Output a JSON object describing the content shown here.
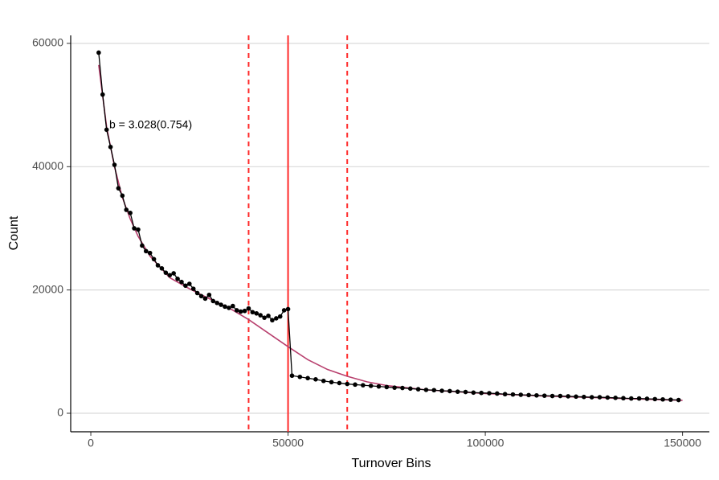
{
  "chart_data": {
    "type": "line",
    "x_label": "Turnover Bins",
    "y_label": "Count",
    "annotation": "b = 3.028(0.754)",
    "xlim": [
      -5100,
      156800
    ],
    "ylim": [
      -3000,
      61300
    ],
    "xticks": [
      0,
      50000,
      100000,
      150000
    ],
    "yticks": [
      0,
      20000,
      40000,
      60000
    ],
    "grid": true,
    "series": [
      {
        "name": "observed",
        "color": "#000000",
        "markers": true,
        "x": [
          2000,
          3000,
          4000,
          5000,
          6000,
          7000,
          8000,
          9000,
          10000,
          11000,
          12000,
          13000,
          14000,
          15000,
          16000,
          17000,
          18000,
          19000,
          20000,
          21000,
          22000,
          23000,
          24000,
          25000,
          26000,
          27000,
          28000,
          29000,
          30000,
          31000,
          32000,
          33000,
          34000,
          35000,
          36000,
          37000,
          38000,
          39000,
          40000,
          41000,
          42000,
          43000,
          44000,
          45000,
          46000,
          47000,
          48000,
          49000,
          50000,
          51000,
          53000,
          55000,
          57000,
          59000,
          61000,
          63000,
          65000,
          67000,
          69000,
          71000,
          73000,
          75000,
          77000,
          79000,
          81000,
          83000,
          85000,
          87000,
          89000,
          91000,
          93000,
          95000,
          97000,
          99000,
          101000,
          103000,
          105000,
          107000,
          109000,
          111000,
          113000,
          115000,
          117000,
          119000,
          121000,
          123000,
          125000,
          127000,
          129000,
          131000,
          133000,
          135000,
          137000,
          139000,
          141000,
          143000,
          145000,
          147000,
          149000
        ],
        "values": [
          58500,
          51700,
          46000,
          43200,
          40300,
          36500,
          35300,
          33000,
          32500,
          30000,
          29800,
          27200,
          26300,
          26000,
          25000,
          24000,
          23500,
          22800,
          22400,
          22700,
          21800,
          21300,
          20700,
          21000,
          20200,
          19500,
          19000,
          18600,
          19200,
          18200,
          17900,
          17600,
          17300,
          17100,
          17400,
          16700,
          16500,
          16600,
          17000,
          16400,
          16200,
          15900,
          15500,
          15800,
          15100,
          15400,
          15700,
          16700,
          16900,
          6100,
          5900,
          5700,
          5500,
          5250,
          5050,
          4900,
          4750,
          4650,
          4550,
          4450,
          4350,
          4250,
          4150,
          4100,
          4000,
          3900,
          3800,
          3750,
          3650,
          3600,
          3500,
          3450,
          3350,
          3300,
          3250,
          3200,
          3100,
          3050,
          3000,
          2950,
          2900,
          2850,
          2800,
          2800,
          2750,
          2700,
          2650,
          2600,
          2600,
          2550,
          2500,
          2450,
          2400,
          2400,
          2350,
          2300,
          2250,
          2200,
          2150
        ]
      },
      {
        "name": "fit",
        "color": "#b8406e",
        "markers": false,
        "x": [
          2000,
          4000,
          6000,
          8000,
          10000,
          12000,
          15000,
          20000,
          25000,
          30000,
          35000,
          40000,
          45000,
          50000,
          55000,
          60000,
          65000,
          70000,
          75000,
          85000,
          100000,
          115000,
          130000,
          150000
        ],
        "values": [
          56500,
          46500,
          40000,
          35000,
          31500,
          28700,
          25500,
          22000,
          20200,
          18600,
          17100,
          15200,
          13000,
          10800,
          8700,
          7100,
          6000,
          5100,
          4500,
          3800,
          3200,
          2800,
          2500,
          2100
        ]
      }
    ],
    "vlines": [
      {
        "value": 40000,
        "color": "#ff2a2a",
        "style": "dashed"
      },
      {
        "value": 50000,
        "color": "#ff2a2a",
        "style": "solid"
      },
      {
        "value": 65000,
        "color": "#ff2a2a",
        "style": "dashed"
      }
    ]
  }
}
